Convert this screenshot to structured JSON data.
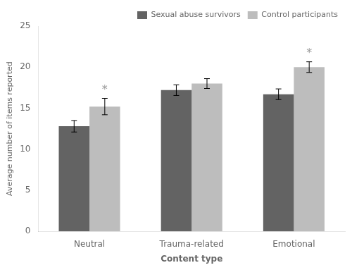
{
  "chart_data": {
    "type": "bar",
    "categories": [
      "Neutral",
      "Trauma-related",
      "Emotional"
    ],
    "series": [
      {
        "name": "Sexual abuse survivors",
        "color": "#636363",
        "values": [
          12.8,
          17.2,
          16.7
        ],
        "errors": [
          0.7,
          0.65,
          0.65
        ]
      },
      {
        "name": "Control participants",
        "color": "#bdbdbd",
        "values": [
          15.2,
          18.0,
          20.0
        ],
        "errors": [
          1.0,
          0.6,
          0.65
        ]
      }
    ],
    "xlabel": "Content type",
    "ylabel": "Average number of items reported",
    "ylim": [
      0,
      25
    ],
    "yticks": [
      0,
      5,
      10,
      15,
      20,
      25
    ],
    "grid": false,
    "legend": "upper right",
    "annotations": [
      {
        "text": "*",
        "category": "Neutral",
        "series": "Control participants",
        "y": 17.0,
        "color": "#999999"
      },
      {
        "text": "*",
        "category": "Emotional",
        "series": "Control participants",
        "y": 21.5,
        "color": "#999999"
      }
    ]
  }
}
